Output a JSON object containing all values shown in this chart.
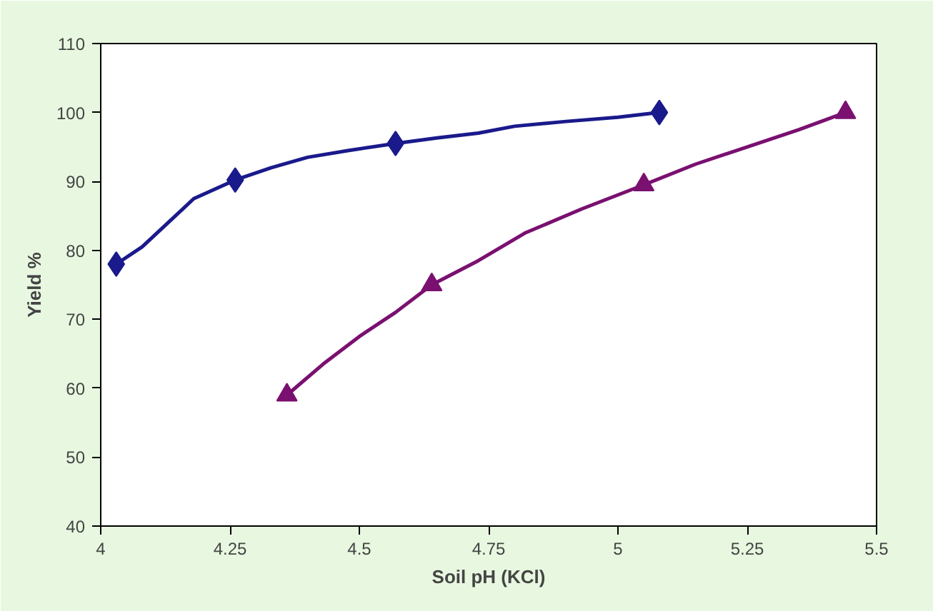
{
  "chart_data": {
    "type": "line",
    "xlabel": "Soil pH (KCl)",
    "ylabel": "Yield %",
    "xlim": [
      4,
      5.5
    ],
    "ylim": [
      40,
      110
    ],
    "xticks": [
      4,
      4.25,
      4.5,
      4.75,
      5,
      5.25,
      5.5
    ],
    "yticks": [
      40,
      50,
      60,
      70,
      80,
      90,
      100,
      110
    ],
    "grid": false,
    "series": [
      {
        "marker": "none",
        "color": "#1a1a8c",
        "x": [
          4.03,
          4.08,
          4.13,
          4.18,
          4.26,
          4.33,
          4.4,
          4.48,
          4.57,
          4.65,
          4.73,
          4.8,
          4.9,
          5.0,
          5.08
        ],
        "values": [
          78,
          80.5,
          84,
          87.5,
          90.2,
          92,
          93.5,
          94.5,
          95.5,
          96.3,
          97,
          98,
          98.7,
          99.3,
          100
        ]
      },
      {
        "type": "scatter",
        "marker": "diamond",
        "color": "#1a1a8c",
        "x": [
          4.03,
          4.26,
          4.57,
          5.08
        ],
        "values": [
          78,
          90.2,
          95.5,
          100
        ]
      },
      {
        "marker": "none",
        "color": "#7a1070",
        "x": [
          4.36,
          4.43,
          4.5,
          4.57,
          4.64,
          4.73,
          4.82,
          4.93,
          5.05,
          5.15,
          5.25,
          5.35,
          5.44
        ],
        "values": [
          59,
          63.5,
          67.5,
          71,
          75,
          78.5,
          82.5,
          86,
          89.5,
          92.5,
          95,
          97.5,
          100
        ]
      },
      {
        "type": "scatter",
        "marker": "triangle",
        "color": "#7a1070",
        "x": [
          4.36,
          4.64,
          5.05,
          5.44
        ],
        "values": [
          59,
          75,
          89.5,
          100
        ]
      }
    ]
  }
}
